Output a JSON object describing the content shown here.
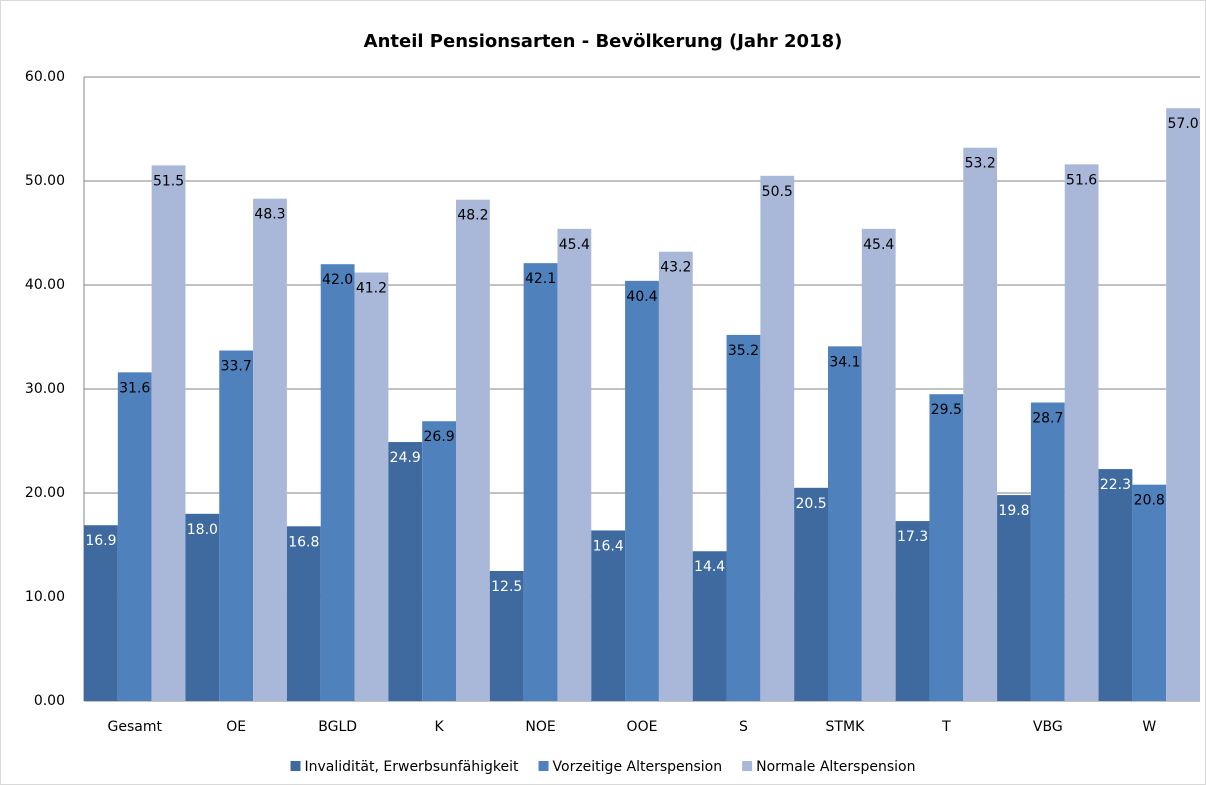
{
  "chart_data": {
    "type": "bar",
    "title": "Anteil Pensionsarten  - Bevölkerung (Jahr 2018)",
    "categories": [
      "Gesamt",
      "OE",
      "BGLD",
      "K",
      "NOE",
      "OOE",
      "S",
      "STMK",
      "T",
      "VBG",
      "W"
    ],
    "series": [
      {
        "name": "Invalidität, Erwerbsunfähigkeit",
        "color": "#3e6aa0",
        "values": [
          16.9,
          18.0,
          16.8,
          24.9,
          12.5,
          16.4,
          14.4,
          20.5,
          17.3,
          19.8,
          22.3
        ],
        "value_labels": [
          "16.9",
          "18.0",
          "16.8",
          "24.9",
          "12.5",
          "16.4",
          "14.4",
          "20.5",
          "17.3",
          "19.8",
          "22.3"
        ]
      },
      {
        "name": "Vorzeitige Alterspension",
        "color": "#4f81bd",
        "values": [
          31.6,
          33.7,
          42.0,
          26.9,
          42.1,
          40.4,
          35.2,
          34.1,
          29.5,
          28.7,
          20.8
        ],
        "value_labels": [
          "31.6",
          "33.7",
          "42.0",
          "26.9",
          "42.1",
          "40.4",
          "35.2",
          "34.1",
          "29.5",
          "28.7",
          "20.8"
        ]
      },
      {
        "name": "Normale Alterspension",
        "color": "#a9b8d9",
        "values": [
          51.5,
          48.3,
          41.2,
          48.2,
          45.4,
          43.2,
          50.5,
          45.4,
          53.2,
          51.6,
          57.0
        ],
        "value_labels": [
          "51.5",
          "48.3",
          "41.2",
          "48.2",
          "45.4",
          "43.2",
          "50.5",
          "45.4",
          "53.2",
          "51.6",
          "57.0"
        ]
      }
    ],
    "ylim": [
      0,
      60
    ],
    "yticks": [
      {
        "value": 0,
        "label": "0.00"
      },
      {
        "value": 10,
        "label": "10.00"
      },
      {
        "value": 20,
        "label": "20.00"
      },
      {
        "value": 30,
        "label": "30.00"
      },
      {
        "value": 40,
        "label": "40.00"
      },
      {
        "value": 50,
        "label": "50.00"
      },
      {
        "value": 60,
        "label": "60.00"
      }
    ],
    "grid": true,
    "legend": "bottom"
  }
}
